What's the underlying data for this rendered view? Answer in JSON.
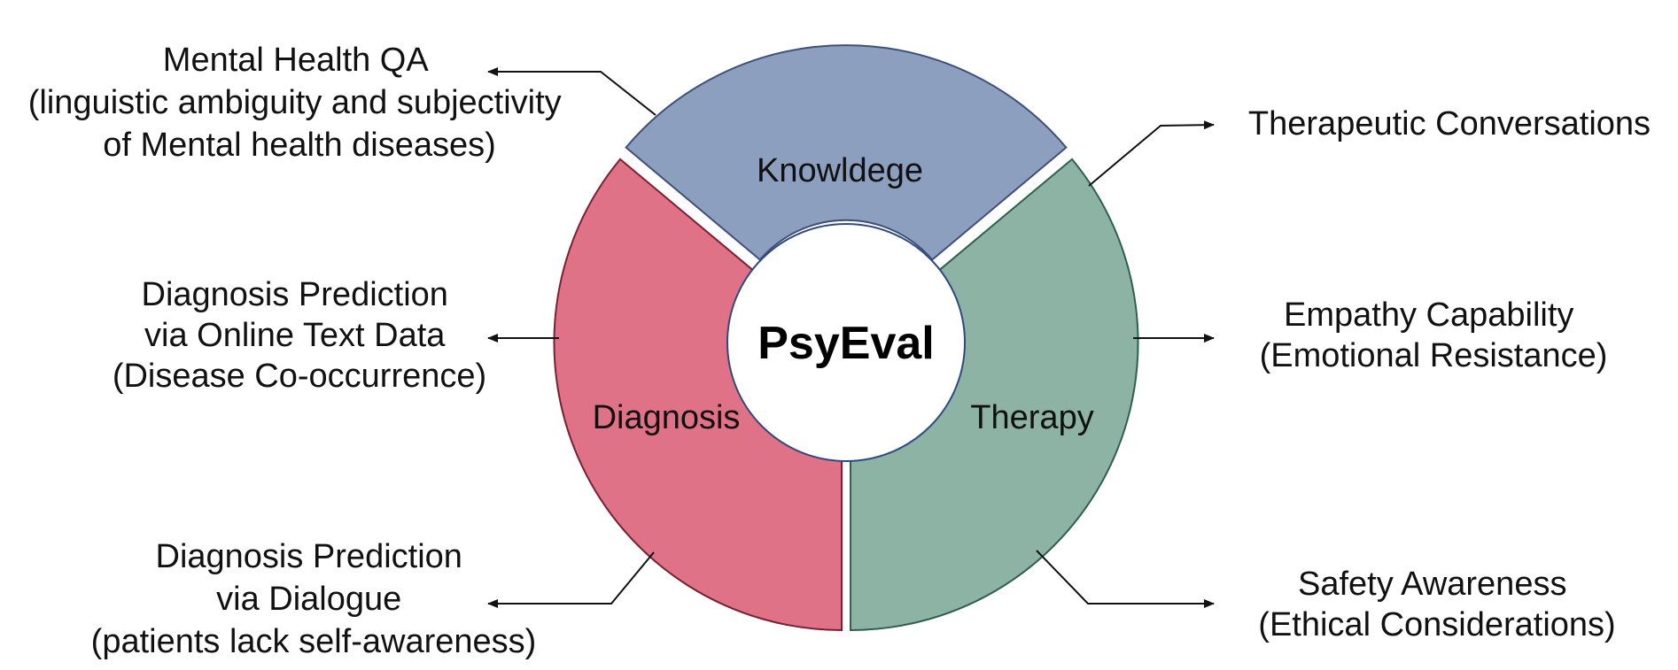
{
  "center": {
    "label": "PsyEval"
  },
  "segments": [
    {
      "key": "knowledge",
      "label": "Knowldege",
      "color": "#8c9fbf",
      "stroke": "#3f4f7a"
    },
    {
      "key": "diagnosis",
      "label": "Diagnosis",
      "color": "#df7286",
      "stroke": "#7a2030"
    },
    {
      "key": "therapy",
      "label": "Therapy",
      "color": "#8db3a5",
      "stroke": "#2f5f52"
    }
  ],
  "left_labels": [
    {
      "lines": [
        "Mental Health QA",
        "(linguistic ambiguity and subjectivity",
        "of Mental health diseases)"
      ]
    },
    {
      "lines": [
        "Diagnosis Prediction",
        "via Online Text Data",
        "(Disease Co-occurrence)"
      ]
    },
    {
      "lines": [
        "Diagnosis Prediction",
        "via Dialogue",
        "(patients lack self-awareness)"
      ]
    }
  ],
  "right_labels": [
    {
      "lines": [
        "Therapeutic Conversations"
      ]
    },
    {
      "lines": [
        "Empathy Capability",
        "(Emotional Resistance)"
      ]
    },
    {
      "lines": [
        "Safety Awareness",
        "(Ethical Considerations)"
      ]
    }
  ]
}
